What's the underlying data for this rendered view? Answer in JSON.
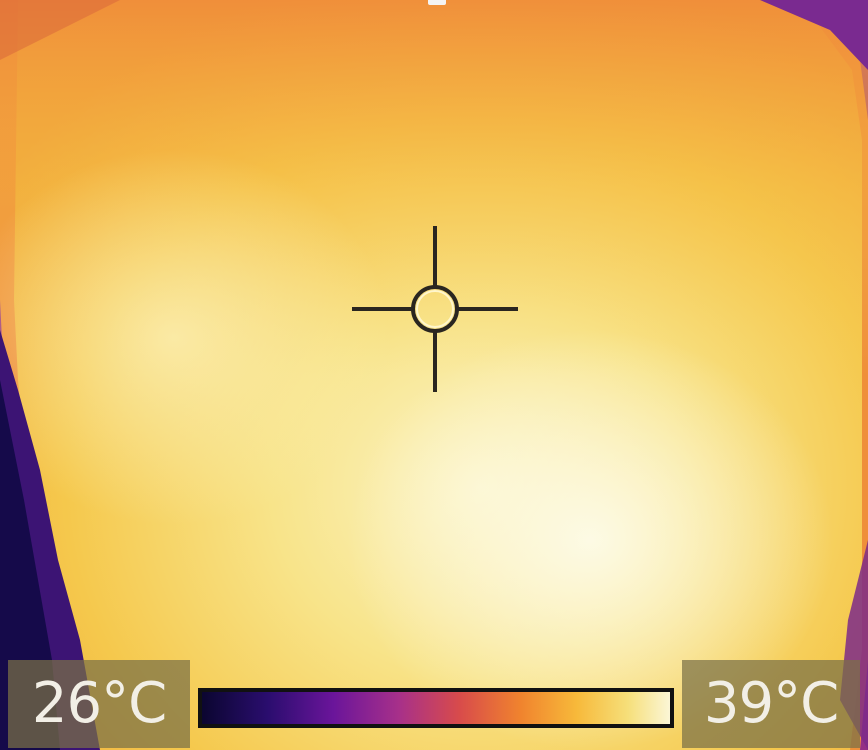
{
  "thermal_view": {
    "min_temp_label": "26°C",
    "max_temp_label": "39°C",
    "palette": [
      "#0b0630",
      "#2a0d6e",
      "#6a159a",
      "#a7308a",
      "#d84b4b",
      "#f0832e",
      "#f7b93a",
      "#f6df7a",
      "#fbf6d6"
    ],
    "colors": {
      "hot": "#f6e08a",
      "warm": "#f0a23a",
      "cold": "#5a1b8f"
    }
  }
}
